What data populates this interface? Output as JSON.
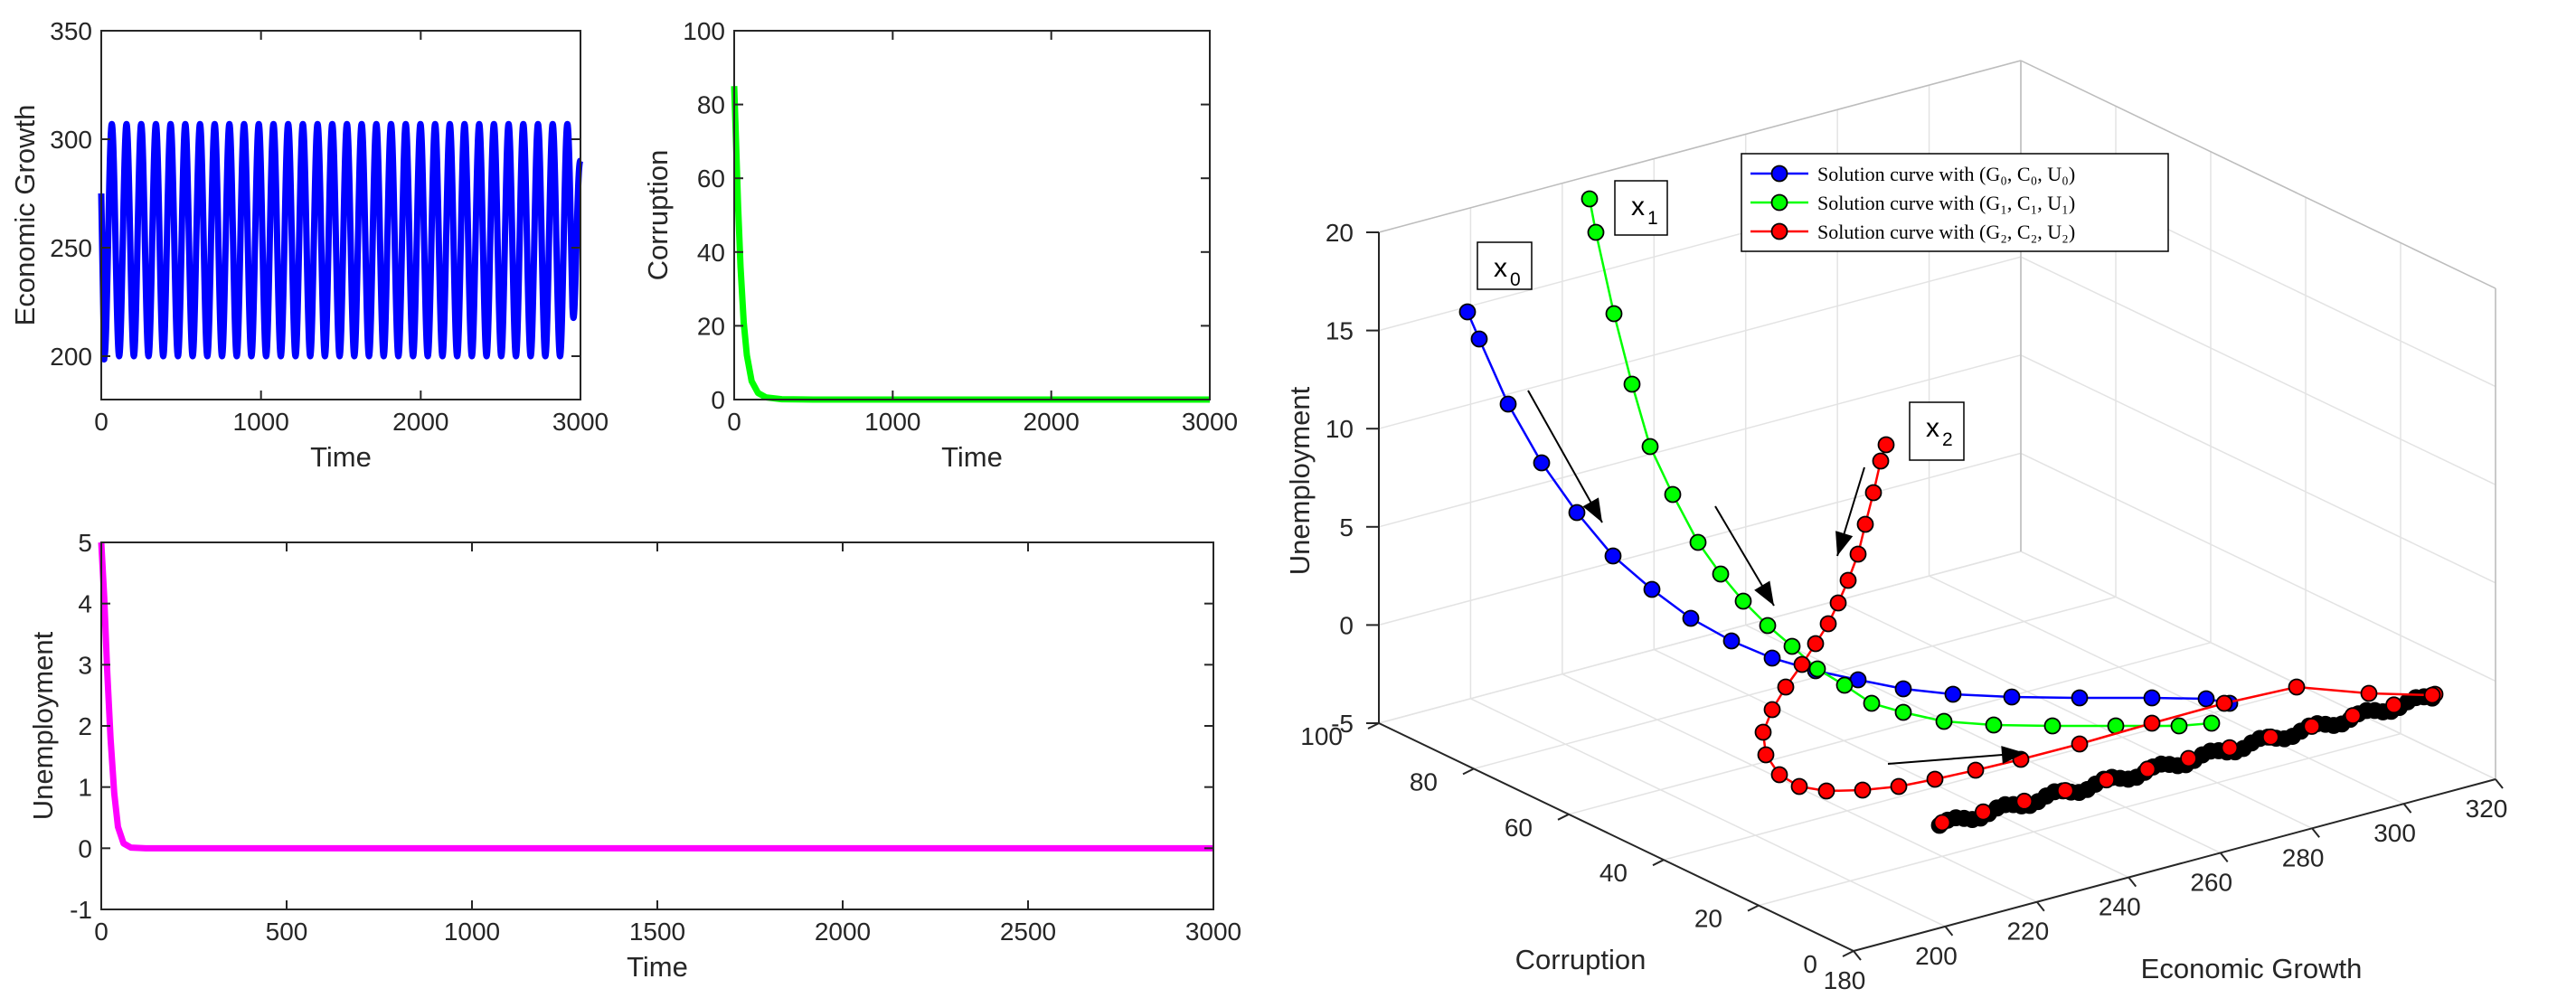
{
  "chart_data": [
    {
      "id": "growth",
      "type": "line",
      "title": "",
      "xlabel": "Time",
      "ylabel": "Economic Growth",
      "xlim": [
        0,
        3000
      ],
      "ylim": [
        180,
        350
      ],
      "xticks": [
        0,
        1000,
        2000,
        3000
      ],
      "yticks": [
        200,
        250,
        300,
        350
      ],
      "grid": false,
      "series": [
        {
          "color": "#0000ff",
          "line_width": 7,
          "oscillation": {
            "start": 275,
            "first_min": 190,
            "min": 200,
            "max": 307,
            "period": 92,
            "end": 290
          },
          "description_points": [
            [
              0,
              275
            ],
            [
              20,
              192
            ],
            [
              55,
              305
            ],
            [
              100,
              198
            ],
            [
              150,
              307
            ],
            [
              3000,
              290
            ]
          ]
        }
      ]
    },
    {
      "id": "corruption",
      "type": "line",
      "title": "",
      "xlabel": "Time",
      "ylabel": "Corruption",
      "xlim": [
        0,
        3000
      ],
      "ylim": [
        0,
        100
      ],
      "xticks": [
        0,
        1000,
        2000,
        3000
      ],
      "yticks": [
        0,
        20,
        40,
        60,
        80,
        100
      ],
      "grid": false,
      "series": [
        {
          "color": "#00ff00",
          "line_width": 7,
          "points": [
            [
              0,
              85
            ],
            [
              10,
              72
            ],
            [
              25,
              52
            ],
            [
              40,
              36
            ],
            [
              60,
              21
            ],
            [
              80,
              12
            ],
            [
              110,
              5
            ],
            [
              150,
              1.8
            ],
            [
              200,
              0.6
            ],
            [
              300,
              0.1
            ],
            [
              500,
              0
            ],
            [
              3000,
              0
            ]
          ]
        }
      ]
    },
    {
      "id": "unemployment",
      "type": "line",
      "title": "",
      "xlabel": "Time",
      "ylabel": "Unemployment",
      "xlim": [
        0,
        3000
      ],
      "ylim": [
        -1,
        5
      ],
      "xticks": [
        0,
        500,
        1000,
        1500,
        2000,
        2500,
        3000
      ],
      "yticks": [
        -1,
        0,
        1,
        2,
        3,
        4,
        5
      ],
      "grid": false,
      "series": [
        {
          "color": "#ff00ff",
          "line_width": 7,
          "points": [
            [
              0,
              5
            ],
            [
              8,
              4.1
            ],
            [
              16,
              2.9
            ],
            [
              25,
              1.8
            ],
            [
              35,
              0.9
            ],
            [
              45,
              0.35
            ],
            [
              60,
              0.08
            ],
            [
              80,
              0.01
            ],
            [
              120,
              0
            ],
            [
              3000,
              0
            ]
          ]
        }
      ]
    },
    {
      "id": "phase3d",
      "type": "line3d",
      "title": "",
      "xlabel": "Economic Growth",
      "ylabel": "Corruption",
      "zlabel": "Unemployment",
      "xlim": [
        180,
        320
      ],
      "ylim": [
        0,
        100
      ],
      "zlim": [
        -5,
        20
      ],
      "xticks": [
        180,
        200,
        220,
        240,
        260,
        280,
        300,
        320
      ],
      "yticks": [
        0,
        20,
        40,
        60,
        80,
        100
      ],
      "zticks": [
        -5,
        0,
        5,
        10,
        15,
        20
      ],
      "grid": true,
      "legend_position": "top-right",
      "legend": [
        {
          "label": "Solution curve with (G₀, C₀, U₀)",
          "color": "#0000ff"
        },
        {
          "label": "Solution curve with (G₁, C₁, U₁)",
          "color": "#00ff00"
        },
        {
          "label": "Solution curve with (G₂, C₂, U₂)",
          "color": "#ff0000"
        }
      ],
      "annotations": [
        {
          "text": "x",
          "sub": "0"
        },
        {
          "text": "x",
          "sub": "1"
        },
        {
          "text": "x",
          "sub": "2"
        }
      ],
      "series": [
        {
          "color": "#0000ff",
          "points_px": "blue"
        },
        {
          "color": "#00ff00",
          "points_px": "green"
        },
        {
          "color": "#ff0000",
          "points_px": "red"
        }
      ]
    }
  ]
}
